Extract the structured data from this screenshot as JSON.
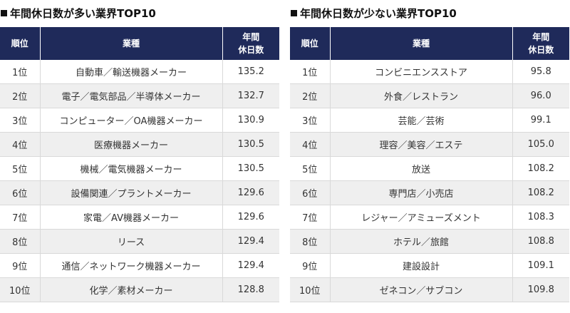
{
  "left": {
    "title": "年間休日数が多い業界TOP10",
    "header": {
      "rank": "順位",
      "industry": "業種",
      "days_line1": "年間",
      "days_line2": "休日数"
    },
    "rows": [
      {
        "rank": "1位",
        "industry": "自動車／輸送機器メーカー",
        "days": "135.2"
      },
      {
        "rank": "2位",
        "industry": "電子／電気部品／半導体メーカー",
        "days": "132.7"
      },
      {
        "rank": "3位",
        "industry": "コンピューター／OA機器メーカー",
        "days": "130.9"
      },
      {
        "rank": "4位",
        "industry": "医療機器メーカー",
        "days": "130.5"
      },
      {
        "rank": "5位",
        "industry": "機械／電気機器メーカー",
        "days": "130.5"
      },
      {
        "rank": "6位",
        "industry": "設備関連／プラントメーカー",
        "days": "129.6"
      },
      {
        "rank": "7位",
        "industry": "家電／AV機器メーカー",
        "days": "129.6"
      },
      {
        "rank": "8位",
        "industry": "リース",
        "days": "129.4"
      },
      {
        "rank": "9位",
        "industry": "通信／ネットワーク機器メーカー",
        "days": "129.4"
      },
      {
        "rank": "10位",
        "industry": "化学／素材メーカー",
        "days": "128.8"
      }
    ]
  },
  "right": {
    "title": "年間休日数が少ない業界TOP10",
    "header": {
      "rank": "順位",
      "industry": "業種",
      "days_line1": "年間",
      "days_line2": "休日数"
    },
    "rows": [
      {
        "rank": "1位",
        "industry": "コンビニエンスストア",
        "days": "95.8"
      },
      {
        "rank": "2位",
        "industry": "外食／レストラン",
        "days": "96.0"
      },
      {
        "rank": "3位",
        "industry": "芸能／芸術",
        "days": "99.1"
      },
      {
        "rank": "4位",
        "industry": "理容／美容／エステ",
        "days": "105.0"
      },
      {
        "rank": "5位",
        "industry": "放送",
        "days": "108.2"
      },
      {
        "rank": "6位",
        "industry": "専門店／小売店",
        "days": "108.2"
      },
      {
        "rank": "7位",
        "industry": "レジャー／アミューズメント",
        "days": "108.3"
      },
      {
        "rank": "8位",
        "industry": "ホテル／旅館",
        "days": "108.8"
      },
      {
        "rank": "9位",
        "industry": "建設設計",
        "days": "109.1"
      },
      {
        "rank": "10位",
        "industry": "ゼネコン／サブコン",
        "days": "109.8"
      }
    ]
  }
}
